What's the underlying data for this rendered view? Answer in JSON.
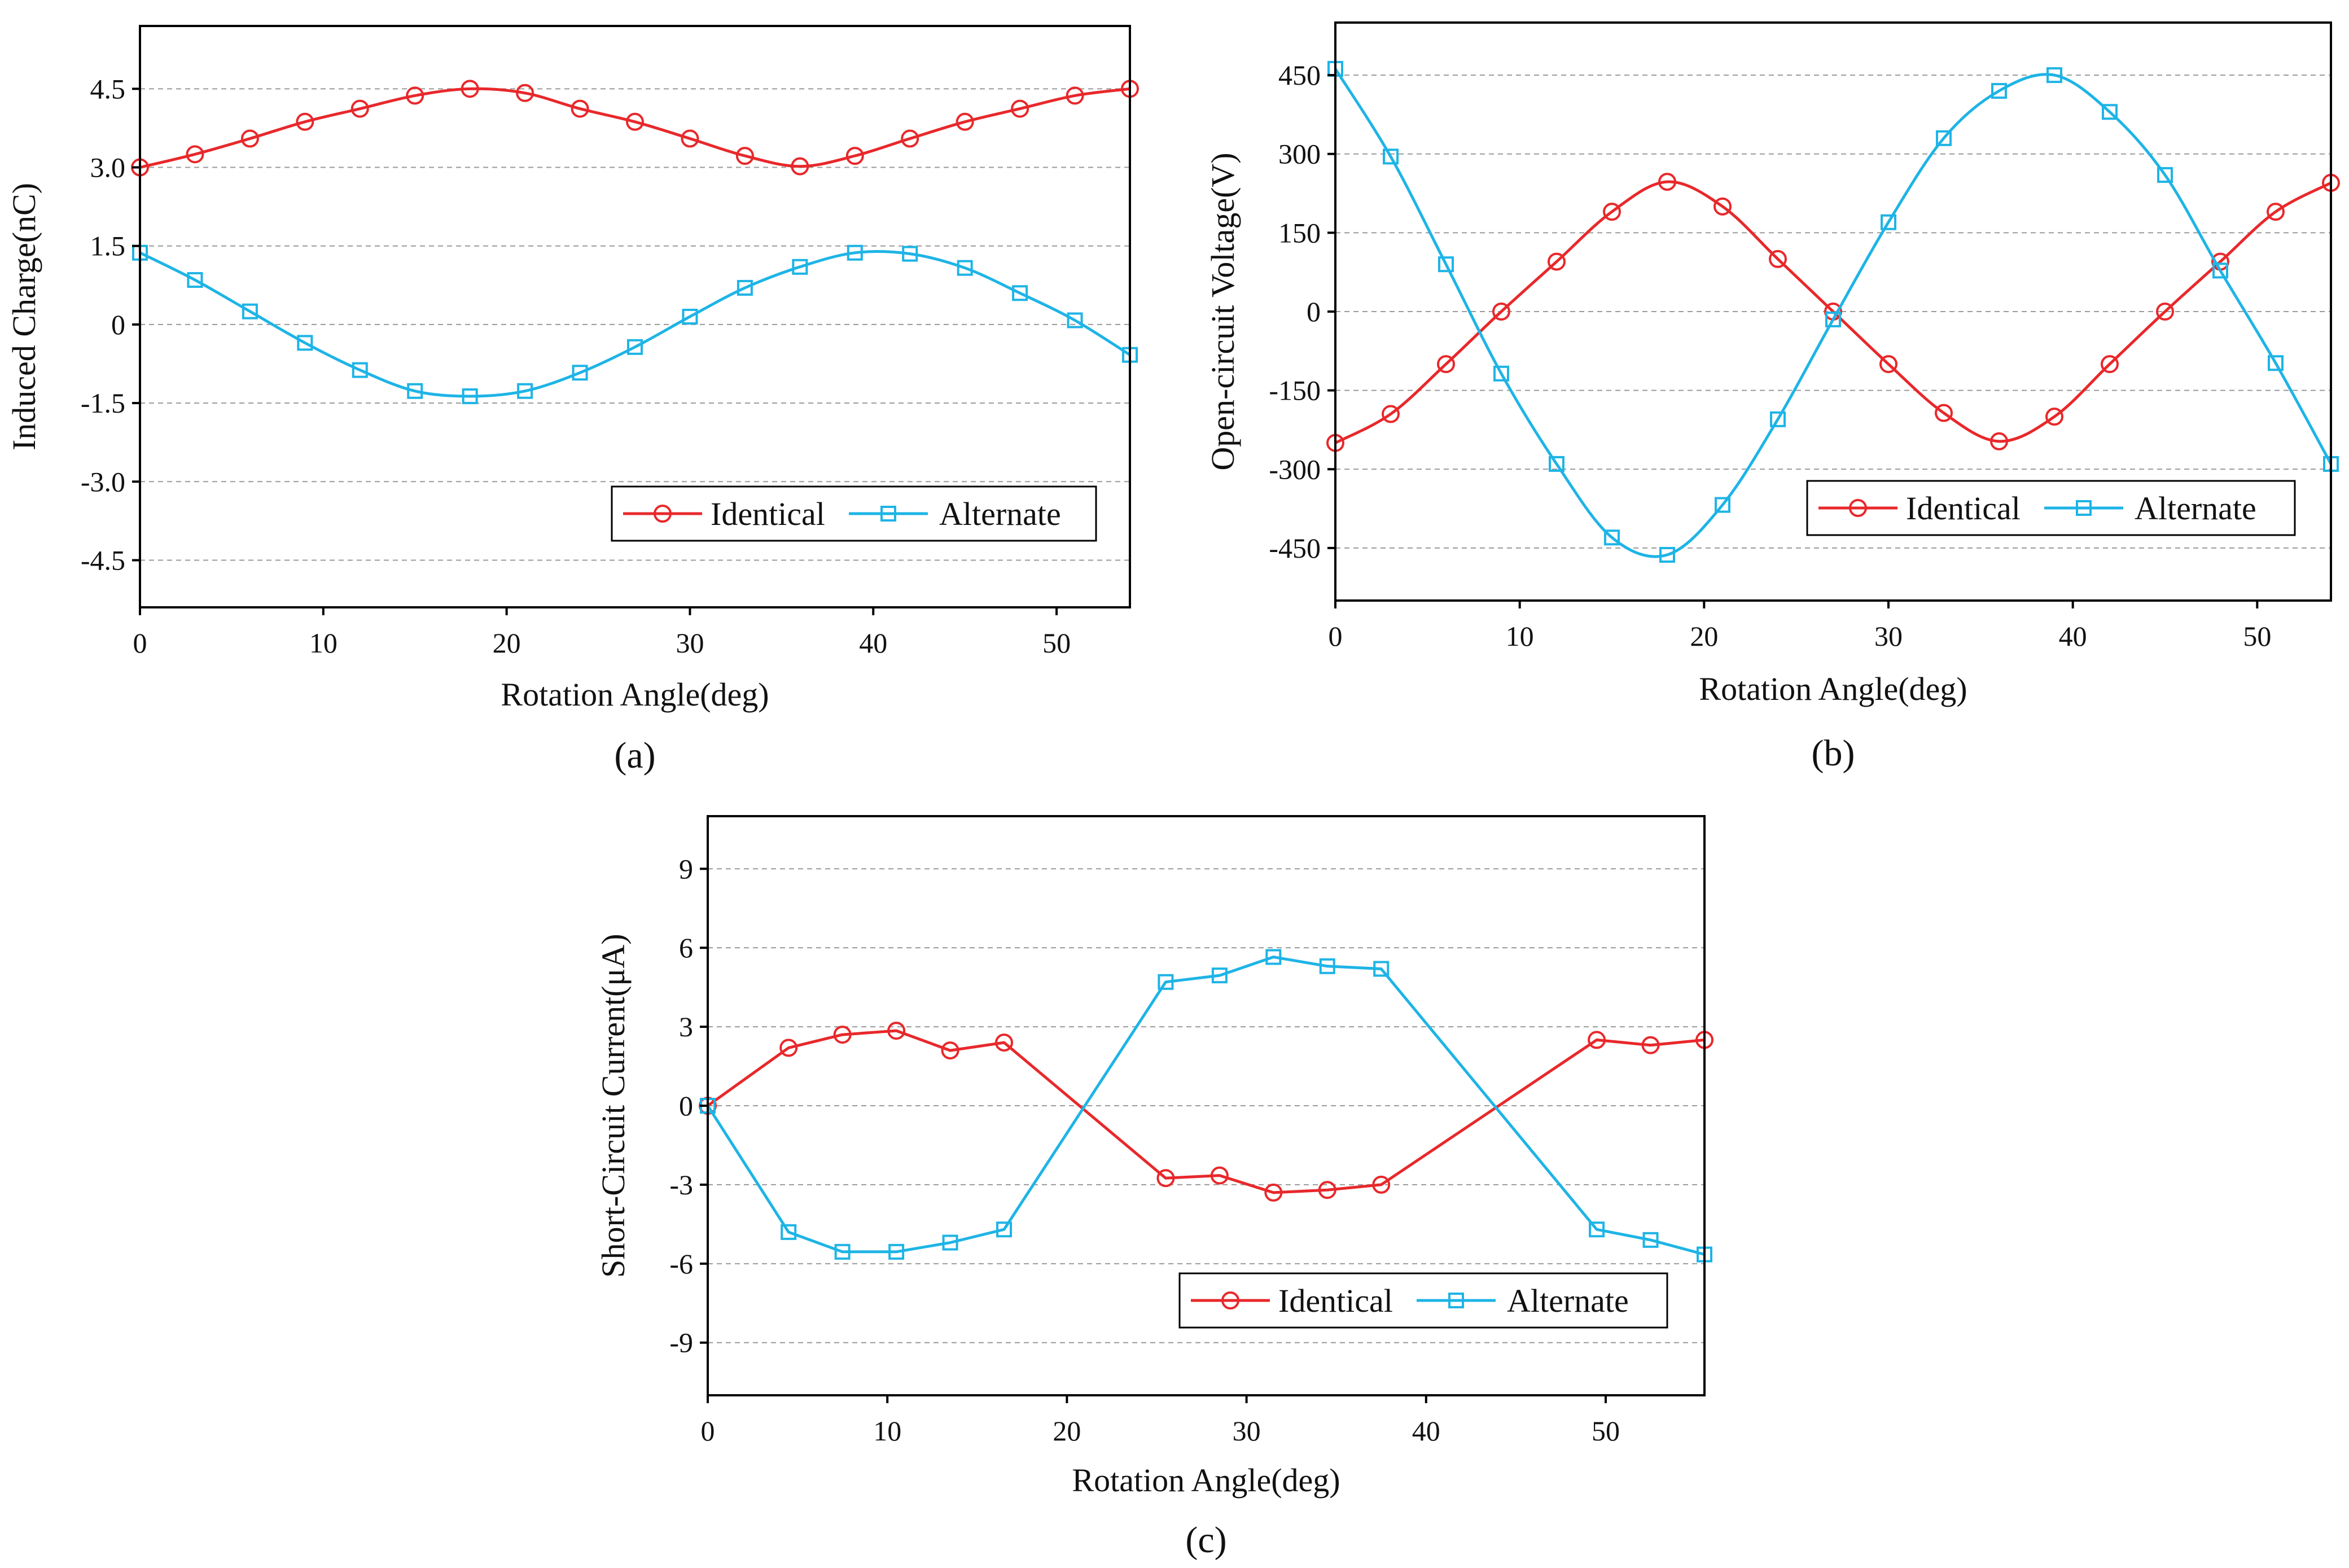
{
  "colors": {
    "identical": "#e8282b",
    "alternate": "#1eb4e6",
    "grid": "#9a9a9a",
    "axis": "#000000"
  },
  "legend": {
    "identical": "Identical",
    "alternate": "Alternate"
  },
  "chart_data": [
    {
      "type": "line",
      "panel_label": "(a)",
      "xlabel": "Rotation Angle(deg)",
      "ylabel": "Induced  Charge(nC)",
      "xlim": [
        0,
        54
      ],
      "ylim": [
        -5.4,
        5.7
      ],
      "xticks": [
        0,
        10,
        20,
        30,
        40,
        50
      ],
      "xtick_labels": [
        "0",
        "10",
        "20",
        "30",
        "40",
        "50"
      ],
      "yticks": [
        4.5,
        3.0,
        1.5,
        0,
        -1.5,
        -3.0,
        -4.5
      ],
      "ytick_labels": [
        "4.5",
        "3.0",
        "1.5",
        "0",
        "-1.5",
        "-3.0",
        "-4.5"
      ],
      "legend_position": "bottom-right",
      "series": [
        {
          "name": "Identical",
          "marker": "circle",
          "x": [
            0,
            3,
            6,
            9,
            12,
            15,
            18,
            21,
            24,
            27,
            30,
            33,
            36,
            39,
            42,
            45,
            48,
            51,
            54
          ],
          "values": [
            3.0,
            3.25,
            3.55,
            3.87,
            4.12,
            4.37,
            4.5,
            4.42,
            4.12,
            3.87,
            3.55,
            3.22,
            3.02,
            3.22,
            3.55,
            3.87,
            4.12,
            4.37,
            4.5
          ]
        },
        {
          "name": "Alternate",
          "marker": "square",
          "x": [
            0,
            3,
            6,
            9,
            12,
            15,
            18,
            21,
            24,
            27,
            30,
            33,
            36,
            39,
            42,
            45,
            48,
            51,
            54
          ],
          "values": [
            1.37,
            0.85,
            0.25,
            -0.35,
            -0.87,
            -1.27,
            -1.37,
            -1.27,
            -0.92,
            -0.43,
            0.15,
            0.7,
            1.1,
            1.37,
            1.35,
            1.08,
            0.6,
            0.08,
            -0.58
          ]
        }
      ]
    },
    {
      "type": "line",
      "panel_label": "(b)",
      "xlabel": "Rotation Angle(deg)",
      "ylabel": "Open-circuit  Voltage(V)",
      "xlim": [
        0,
        54
      ],
      "ylim": [
        -550,
        550
      ],
      "xticks": [
        0,
        10,
        20,
        30,
        40,
        50
      ],
      "xtick_labels": [
        "0",
        "10",
        "20",
        "30",
        "40",
        "50"
      ],
      "yticks": [
        450,
        300,
        150,
        0,
        -150,
        -300,
        -450
      ],
      "ytick_labels": [
        "450",
        "300",
        "150",
        "0",
        "-150",
        "-300",
        "-450"
      ],
      "legend_position": "bottom-right",
      "series": [
        {
          "name": "Identical",
          "marker": "circle",
          "x": [
            0,
            3,
            6,
            9,
            12,
            15,
            18,
            21,
            24,
            27,
            30,
            33,
            36,
            39,
            42,
            45,
            48,
            51,
            54
          ],
          "values": [
            -250,
            -195,
            -100,
            0,
            95,
            190,
            247,
            200,
            100,
            0,
            -100,
            -193,
            -247,
            -200,
            -100,
            0,
            95,
            190,
            245
          ]
        },
        {
          "name": "Alternate",
          "marker": "square",
          "x": [
            0,
            3,
            6,
            9,
            12,
            15,
            18,
            21,
            24,
            27,
            30,
            33,
            36,
            39,
            42,
            45,
            48,
            51,
            54
          ],
          "values": [
            462,
            295,
            90,
            -118,
            -290,
            -430,
            -463,
            -368,
            -205,
            -15,
            170,
            330,
            420,
            450,
            380,
            260,
            78,
            -98,
            -290
          ]
        }
      ]
    },
    {
      "type": "line",
      "panel_label": "(c)",
      "xlabel": "Rotation Angle(deg)",
      "ylabel": "Short-Circuit Current(μA)",
      "xlim": [
        0,
        55.5
      ],
      "ylim": [
        -11,
        11
      ],
      "xticks": [
        0,
        10,
        20,
        30,
        40,
        50
      ],
      "xtick_labels": [
        "0",
        "10",
        "20",
        "30",
        "40",
        "50"
      ],
      "yticks": [
        9,
        6,
        3,
        0,
        -3,
        -6,
        -9
      ],
      "ytick_labels": [
        "9",
        "6",
        "3",
        "0",
        "-3",
        "-6",
        "-9"
      ],
      "legend_position": "bottom-right",
      "series": [
        {
          "name": "Identical",
          "marker": "circle",
          "x": [
            0,
            4.5,
            7.5,
            10.5,
            13.5,
            16.5,
            25.5,
            28.5,
            31.5,
            34.5,
            37.5,
            49.5,
            52.5,
            55.5
          ],
          "values": [
            0,
            2.2,
            2.7,
            2.85,
            2.1,
            2.4,
            -2.75,
            -2.65,
            -3.3,
            -3.2,
            -3.0,
            2.5,
            2.3,
            2.5
          ]
        },
        {
          "name": "Alternate",
          "marker": "square",
          "x": [
            0,
            4.5,
            7.5,
            10.5,
            13.5,
            16.5,
            25.5,
            28.5,
            31.5,
            34.5,
            37.5,
            49.5,
            52.5,
            55.5
          ],
          "values": [
            0,
            -4.8,
            -5.55,
            -5.55,
            -5.2,
            -4.7,
            4.7,
            4.95,
            5.65,
            5.3,
            5.2,
            -4.7,
            -5.1,
            -5.65
          ]
        }
      ]
    }
  ]
}
